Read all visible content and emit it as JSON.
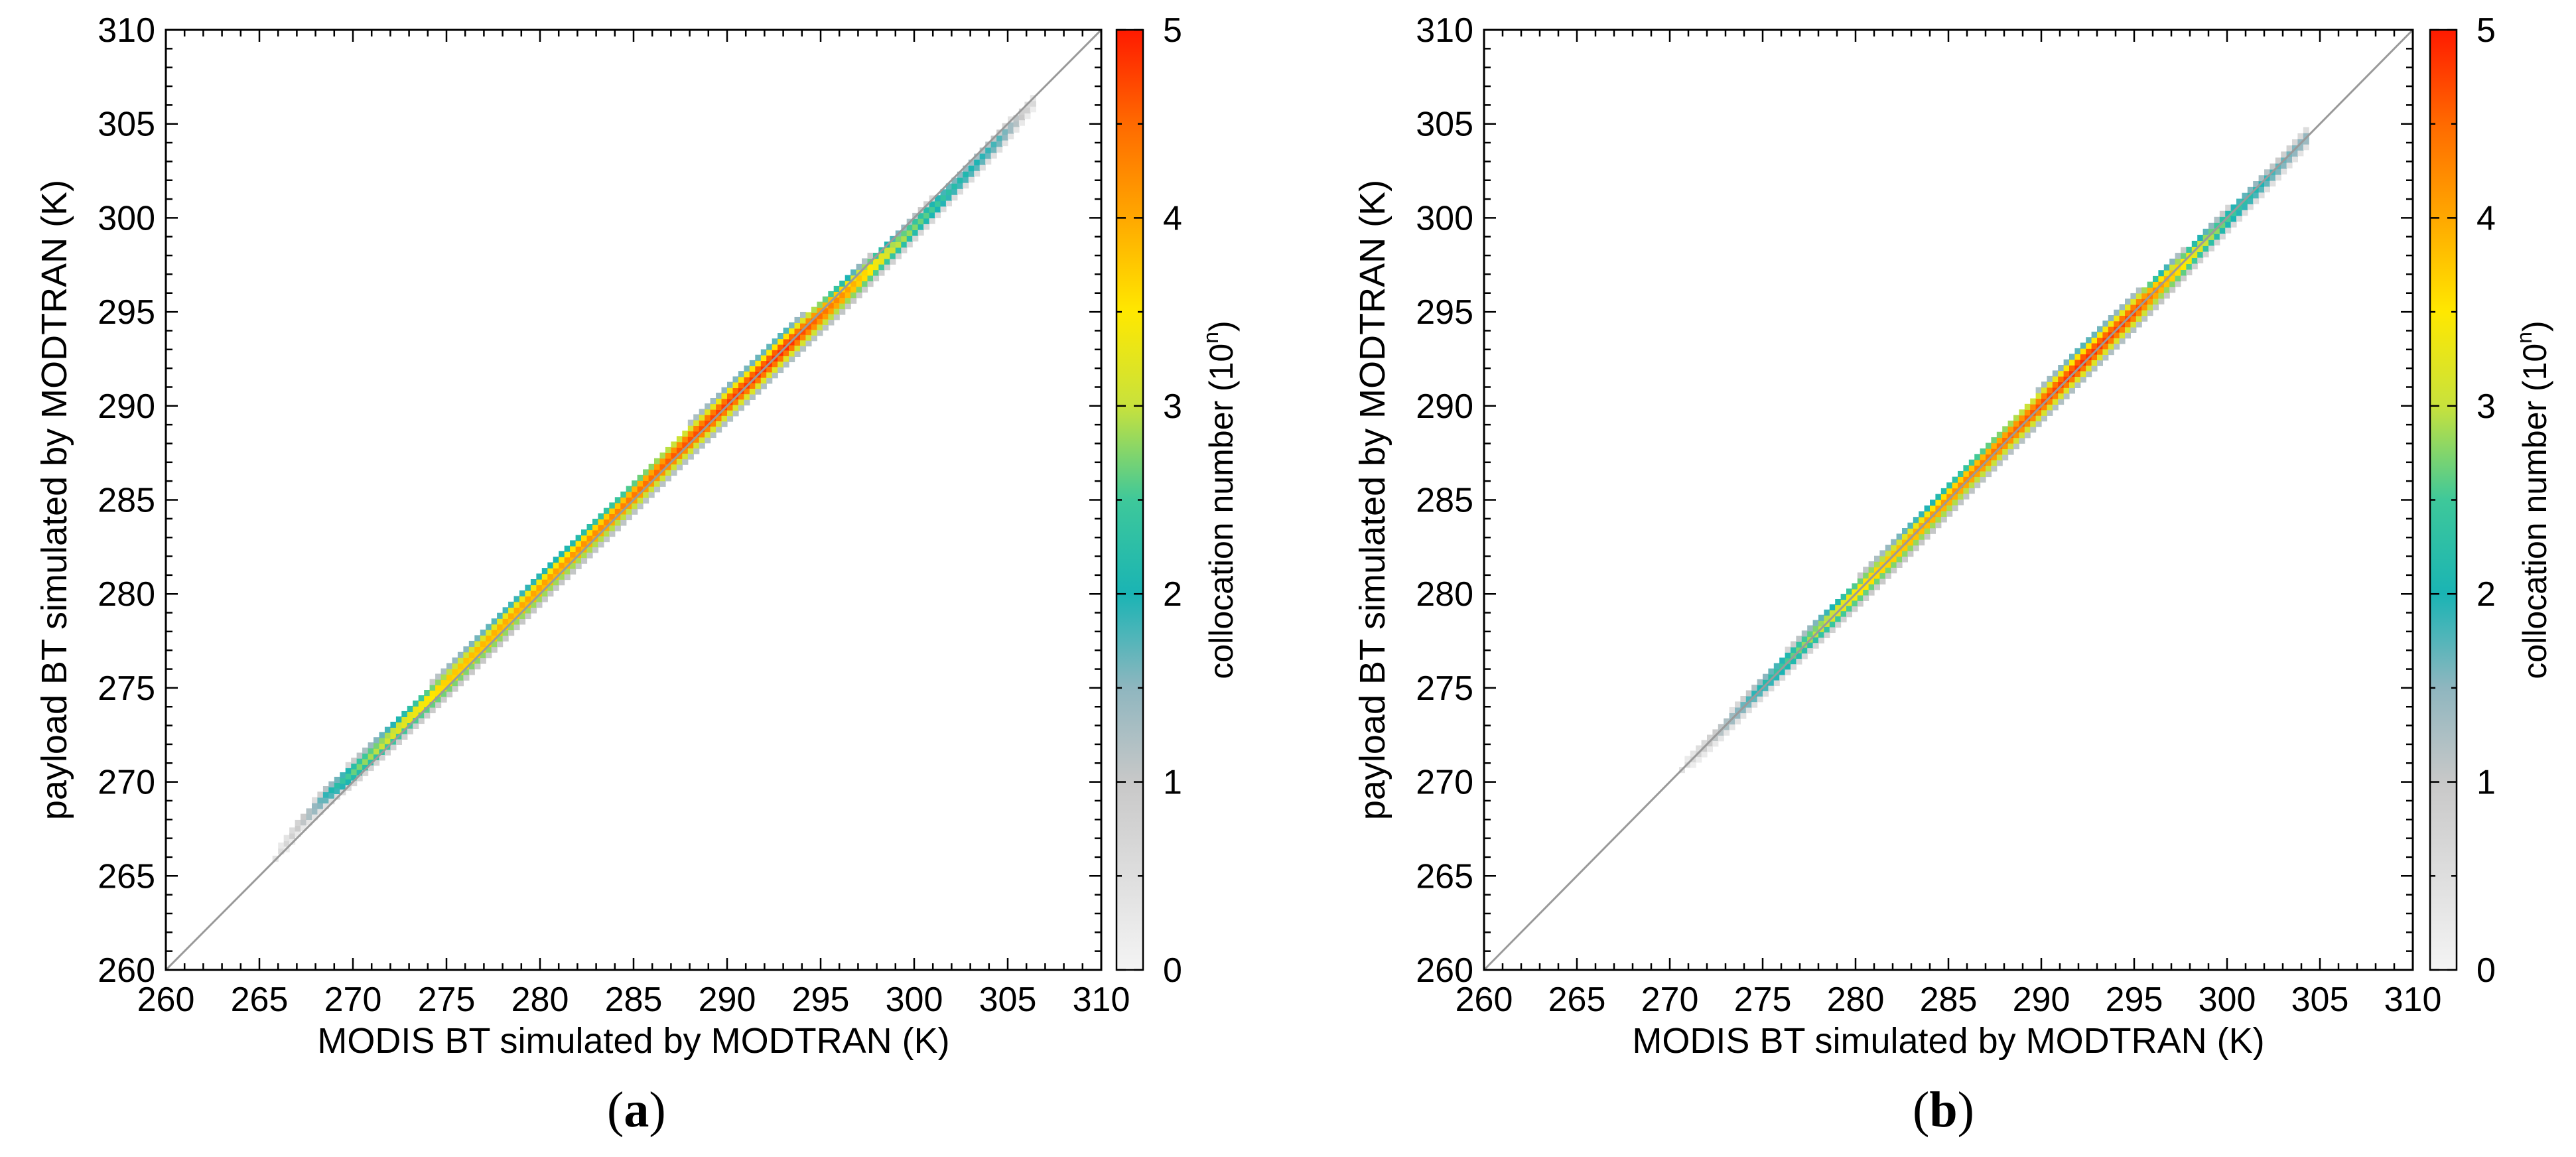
{
  "chart_data": [
    {
      "type": "heatmap",
      "panel_label": "a",
      "xlabel": "MODIS BT simulated by MODTRAN (K)",
      "ylabel": "payload BT simulated by MODTRAN (K)",
      "xlim": [
        260,
        310
      ],
      "ylim": [
        260,
        310
      ],
      "xticks": [
        "260",
        "265",
        "270",
        "275",
        "280",
        "285",
        "290",
        "295",
        "300",
        "305",
        "310"
      ],
      "yticks": [
        "260",
        "265",
        "270",
        "275",
        "280",
        "285",
        "290",
        "295",
        "300",
        "305",
        "310"
      ],
      "reference_line": "1:1",
      "colorbar": {
        "label": "collocation number (10",
        "label_sup": "n",
        "label_end": ")",
        "range": [
          0,
          5
        ],
        "ticks": [
          "0",
          "1",
          "2",
          "3",
          "4",
          "5"
        ]
      },
      "density_profile": [
        {
          "x": 265.5,
          "log_count": 0.3,
          "offset": 0.0
        },
        {
          "x": 267.0,
          "log_count": 1.0,
          "offset": 0.6
        },
        {
          "x": 268.5,
          "log_count": 2.0,
          "offset": 0.7
        },
        {
          "x": 270.0,
          "log_count": 2.7,
          "offset": 0.5
        },
        {
          "x": 272.0,
          "log_count": 3.2,
          "offset": 0.4
        },
        {
          "x": 275.0,
          "log_count": 3.8,
          "offset": 0.3
        },
        {
          "x": 278.0,
          "log_count": 4.0,
          "offset": 0.3
        },
        {
          "x": 281.0,
          "log_count": 4.1,
          "offset": 0.3
        },
        {
          "x": 284.0,
          "log_count": 4.3,
          "offset": 0.2
        },
        {
          "x": 287.0,
          "log_count": 4.6,
          "offset": 0.2
        },
        {
          "x": 290.0,
          "log_count": 4.8,
          "offset": 0.1
        },
        {
          "x": 293.0,
          "log_count": 4.9,
          "offset": 0.0
        },
        {
          "x": 296.0,
          "log_count": 4.2,
          "offset": -0.3
        },
        {
          "x": 299.0,
          "log_count": 3.0,
          "offset": -0.5
        },
        {
          "x": 302.0,
          "log_count": 2.2,
          "offset": -0.5
        },
        {
          "x": 304.5,
          "log_count": 1.8,
          "offset": -0.4
        },
        {
          "x": 306.5,
          "log_count": 0.4,
          "offset": -0.2
        }
      ]
    },
    {
      "type": "heatmap",
      "panel_label": "b",
      "xlabel": "MODIS BT simulated by MODTRAN (K)",
      "ylabel": "payload BT simulated by MODTRAN (K)",
      "xlim": [
        260,
        310
      ],
      "ylim": [
        260,
        310
      ],
      "xticks": [
        "260",
        "265",
        "270",
        "275",
        "280",
        "285",
        "290",
        "295",
        "300",
        "305",
        "310"
      ],
      "yticks": [
        "260",
        "265",
        "270",
        "275",
        "280",
        "285",
        "290",
        "295",
        "300",
        "305",
        "310"
      ],
      "reference_line": "1:1",
      "colorbar": {
        "label": "collocation number (10",
        "label_sup": "n",
        "label_end": ")",
        "range": [
          0,
          5
        ],
        "ticks": [
          "0",
          "1",
          "2",
          "3",
          "4",
          "5"
        ]
      },
      "density_profile": [
        {
          "x": 270.5,
          "log_count": 0.4,
          "offset": 0.0
        },
        {
          "x": 272.5,
          "log_count": 1.2,
          "offset": 0.0
        },
        {
          "x": 274.5,
          "log_count": 2.0,
          "offset": 0.1
        },
        {
          "x": 277.0,
          "log_count": 2.8,
          "offset": 0.1
        },
        {
          "x": 280.0,
          "log_count": 3.6,
          "offset": 0.0
        },
        {
          "x": 283.0,
          "log_count": 4.0,
          "offset": 0.0
        },
        {
          "x": 286.0,
          "log_count": 4.3,
          "offset": 0.1
        },
        {
          "x": 289.0,
          "log_count": 4.6,
          "offset": 0.1
        },
        {
          "x": 292.0,
          "log_count": 4.9,
          "offset": 0.1
        },
        {
          "x": 295.0,
          "log_count": 4.7,
          "offset": 0.0
        },
        {
          "x": 297.5,
          "log_count": 3.6,
          "offset": -0.1
        },
        {
          "x": 300.0,
          "log_count": 2.5,
          "offset": -0.1
        },
        {
          "x": 302.5,
          "log_count": 1.8,
          "offset": -0.1
        },
        {
          "x": 304.3,
          "log_count": 1.5,
          "offset": 0.0
        }
      ]
    }
  ]
}
